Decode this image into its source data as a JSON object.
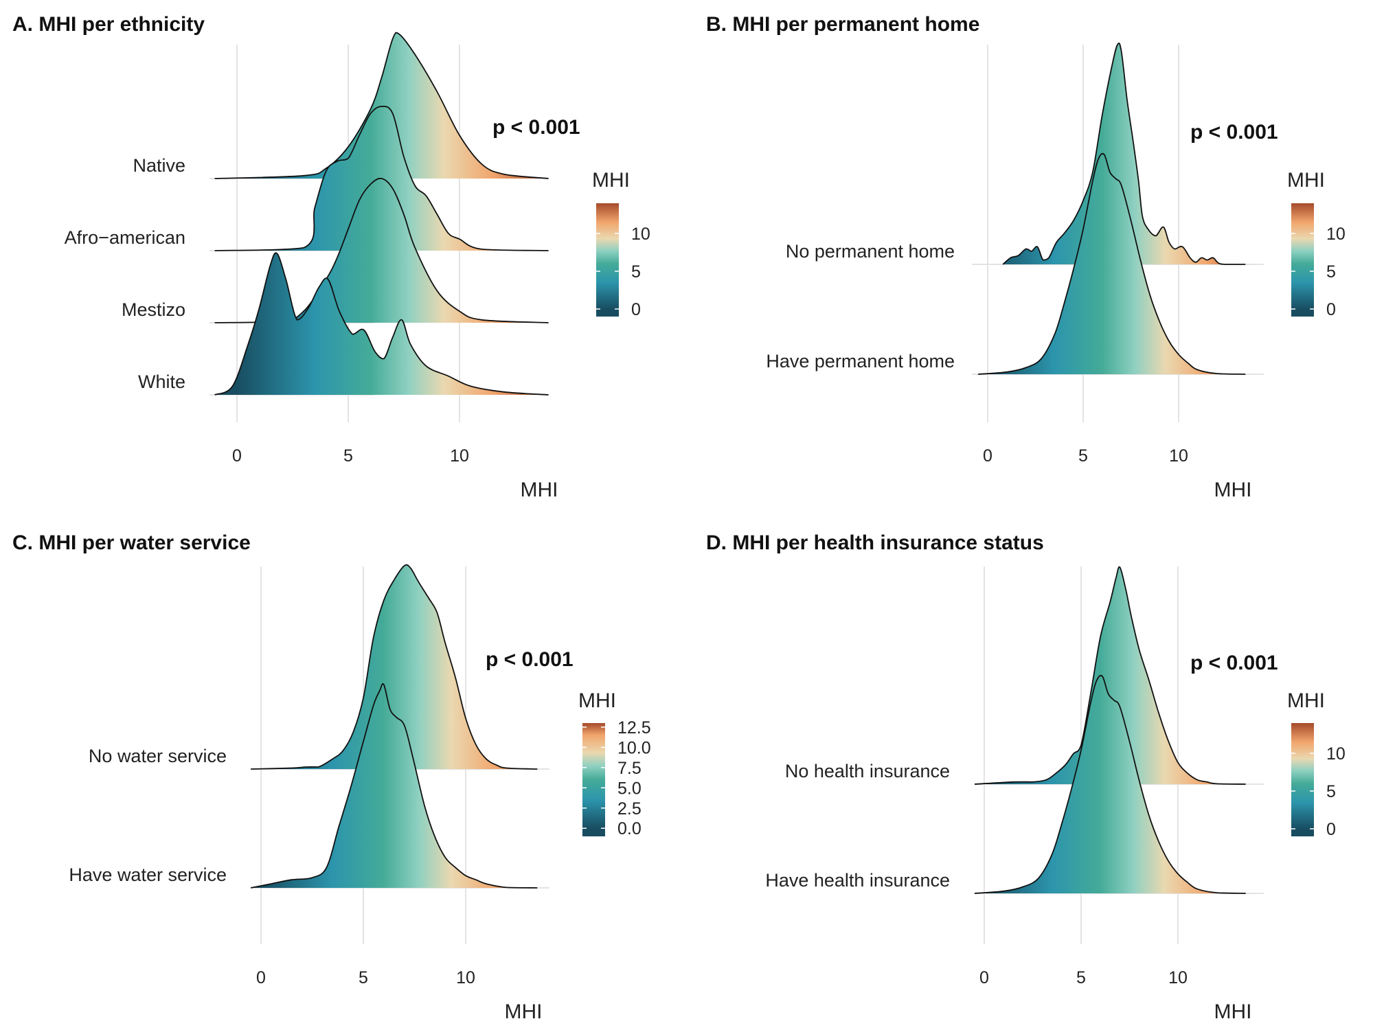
{
  "figure": {
    "palette": {
      "stops": [
        {
          "v": 0,
          "c": "#184d61"
        },
        {
          "v": 3.5,
          "c": "#2c95ac"
        },
        {
          "v": 6,
          "c": "#45ab98"
        },
        {
          "v": 7.7,
          "c": "#8fd0c1"
        },
        {
          "v": 9.3,
          "c": "#ead8b0"
        },
        {
          "v": 11.5,
          "c": "#f1a56c"
        },
        {
          "v": 14,
          "c": "#a54a2a"
        }
      ],
      "grid_color": "#e3e3e3",
      "outline_color": "#111111"
    }
  },
  "chart_data": [
    {
      "type": "ridgeline",
      "title": "A. MHI per ethnicity",
      "annotation": "p < 0.001",
      "xlabel": "MHI",
      "xlim": [
        -1,
        14
      ],
      "xticks": [
        "0",
        "5",
        "10"
      ],
      "legend": {
        "title": "MHI",
        "range": [
          -1,
          14
        ],
        "ticks": [
          "0",
          "5",
          "10"
        ]
      },
      "series": [
        {
          "name": "Native",
          "x": [
            -1,
            3,
            4,
            5,
            6,
            6.5,
            7,
            7.3,
            8,
            9,
            10,
            11,
            12,
            14
          ],
          "density": [
            0,
            0.02,
            0.07,
            0.22,
            0.48,
            0.7,
            0.97,
            1.0,
            0.86,
            0.6,
            0.3,
            0.1,
            0.03,
            0
          ]
        },
        {
          "name": "Afro−american",
          "x": [
            -1,
            3,
            3.5,
            4,
            4.5,
            5,
            5.5,
            6,
            6.5,
            7,
            7.5,
            8,
            8.5,
            9,
            9.5,
            10,
            11,
            14
          ],
          "density": [
            0,
            0.02,
            0.3,
            0.55,
            0.62,
            0.64,
            0.8,
            0.95,
            1.0,
            0.95,
            0.65,
            0.45,
            0.38,
            0.25,
            0.12,
            0.08,
            0.01,
            0
          ]
        },
        {
          "name": "Mestizo",
          "x": [
            -1,
            2,
            3,
            4,
            4.5,
            5,
            5.5,
            6,
            6.5,
            7,
            7.5,
            8,
            9,
            10,
            11,
            14
          ],
          "density": [
            0,
            0.01,
            0.08,
            0.3,
            0.45,
            0.65,
            0.85,
            0.96,
            1.0,
            0.93,
            0.75,
            0.52,
            0.22,
            0.08,
            0.02,
            0
          ]
        },
        {
          "name": "White",
          "x": [
            -1,
            -0.2,
            0.5,
            1,
            1.5,
            1.8,
            2.2,
            2.7,
            3.2,
            3.7,
            4.1,
            4.6,
            5.2,
            5.7,
            6.2,
            6.6,
            7,
            7.4,
            7.8,
            8.5,
            9.5,
            10.5,
            12,
            14
          ],
          "density": [
            0,
            0.06,
            0.35,
            0.6,
            0.9,
            0.98,
            0.8,
            0.52,
            0.6,
            0.75,
            0.8,
            0.58,
            0.42,
            0.45,
            0.3,
            0.25,
            0.4,
            0.52,
            0.35,
            0.2,
            0.13,
            0.06,
            0.02,
            0
          ]
        }
      ]
    },
    {
      "type": "ridgeline",
      "title": "B. MHI per permanent home",
      "annotation": "p < 0.001",
      "xlabel": "MHI",
      "xlim": [
        -0.5,
        13.5
      ],
      "xticks": [
        "0",
        "5",
        "10"
      ],
      "legend": {
        "title": "MHI",
        "range": [
          -1,
          14
        ],
        "ticks": [
          "0",
          "5",
          "10"
        ]
      },
      "series": [
        {
          "name": "No permanent home",
          "x": [
            0.8,
            1.2,
            1.6,
            2.0,
            2.3,
            2.6,
            2.9,
            3.2,
            3.6,
            4.0,
            4.5,
            5.0,
            5.5,
            6.0,
            6.5,
            6.8,
            7.0,
            7.3,
            7.6,
            7.9,
            8.1,
            8.4,
            8.8,
            9.2,
            9.5,
            9.8,
            10.2,
            10.6,
            10.9,
            11.2,
            11.5,
            11.8,
            12.1,
            12.5,
            13.5
          ],
          "density": [
            0,
            0.03,
            0.04,
            0.07,
            0.06,
            0.08,
            0.02,
            0.03,
            0.1,
            0.14,
            0.2,
            0.29,
            0.42,
            0.68,
            0.9,
            1.0,
            0.97,
            0.75,
            0.57,
            0.38,
            0.22,
            0.16,
            0.13,
            0.17,
            0.1,
            0.07,
            0.08,
            0.03,
            0.01,
            0.03,
            0.02,
            0.03,
            0.005,
            0,
            0
          ]
        },
        {
          "name": "Have permanent home",
          "x": [
            -0.5,
            1,
            2,
            2.8,
            3.5,
            4,
            4.5,
            5,
            5.5,
            5.8,
            6.1,
            6.4,
            6.7,
            7,
            7.5,
            8,
            8.5,
            9,
            9.5,
            10,
            10.5,
            11,
            12,
            13.5
          ],
          "density": [
            0,
            0.01,
            0.03,
            0.07,
            0.18,
            0.32,
            0.48,
            0.66,
            0.88,
            0.98,
            1.0,
            0.92,
            0.89,
            0.86,
            0.7,
            0.52,
            0.36,
            0.24,
            0.15,
            0.09,
            0.05,
            0.02,
            0.003,
            0
          ]
        }
      ]
    },
    {
      "type": "ridgeline",
      "title": "C. MHI per water service",
      "annotation": "p < 0.001",
      "xlabel": "MHI",
      "xlim": [
        -0.5,
        13.5
      ],
      "xticks": [
        "0",
        "5",
        "10"
      ],
      "legend": {
        "title": "MHI",
        "range": [
          -1,
          13
        ],
        "ticks": [
          "0.0",
          "2.5",
          "5.0",
          "7.5",
          "10.0",
          "12.5"
        ]
      },
      "series": [
        {
          "name": "No water service",
          "x": [
            -0.5,
            1.5,
            2.2,
            2.8,
            3.5,
            4,
            4.5,
            5,
            5.5,
            6,
            6.5,
            7,
            7.3,
            7.7,
            8.2,
            8.6,
            9,
            9.5,
            10,
            10.5,
            11,
            11.5,
            12,
            13.5
          ],
          "density": [
            0,
            0.005,
            0.01,
            0.01,
            0.05,
            0.09,
            0.18,
            0.35,
            0.65,
            0.83,
            0.93,
            1.0,
            0.99,
            0.92,
            0.84,
            0.77,
            0.62,
            0.45,
            0.25,
            0.12,
            0.05,
            0.02,
            0.005,
            0
          ]
        },
        {
          "name": "Have water service",
          "x": [
            -0.5,
            0.5,
            1.5,
            2.5,
            3.2,
            3.8,
            4.4,
            5.0,
            5.5,
            5.8,
            6.0,
            6.3,
            6.6,
            7.0,
            7.4,
            8.0,
            8.5,
            9.0,
            9.5,
            10.0,
            10.5,
            11.0,
            12.0,
            13.5
          ],
          "density": [
            0,
            0.02,
            0.04,
            0.05,
            0.1,
            0.3,
            0.5,
            0.72,
            0.9,
            0.97,
            1.0,
            0.88,
            0.84,
            0.8,
            0.65,
            0.4,
            0.25,
            0.15,
            0.1,
            0.06,
            0.04,
            0.02,
            0.002,
            0
          ]
        }
      ]
    },
    {
      "type": "ridgeline",
      "title": "D. MHI per health insurance status",
      "annotation": "p < 0.001",
      "xlabel": "MHI",
      "xlim": [
        -0.5,
        13.5
      ],
      "xticks": [
        "0",
        "5",
        "10"
      ],
      "legend": {
        "title": "MHI",
        "range": [
          -1,
          14
        ],
        "ticks": [
          "0",
          "5",
          "10"
        ]
      },
      "series": [
        {
          "name": "No health insurance",
          "x": [
            -0.5,
            1.5,
            2.5,
            3.2,
            3.7,
            4.2,
            4.6,
            5,
            5.5,
            6,
            6.5,
            6.8,
            7.0,
            7.3,
            7.6,
            8,
            8.5,
            9,
            9.5,
            10,
            10.5,
            11,
            11.5,
            12,
            13.5
          ],
          "density": [
            0,
            0.01,
            0.01,
            0.02,
            0.05,
            0.09,
            0.14,
            0.18,
            0.42,
            0.68,
            0.84,
            0.95,
            1.0,
            0.9,
            0.77,
            0.62,
            0.48,
            0.33,
            0.2,
            0.1,
            0.05,
            0.02,
            0.01,
            0.002,
            0
          ]
        },
        {
          "name": "Have health insurance",
          "x": [
            -0.5,
            1,
            2,
            2.8,
            3.5,
            4,
            4.5,
            5,
            5.5,
            5.8,
            6.1,
            6.4,
            6.7,
            7,
            7.5,
            8,
            8.5,
            9,
            9.5,
            10,
            10.5,
            11,
            12,
            13.5
          ],
          "density": [
            0,
            0.01,
            0.03,
            0.07,
            0.18,
            0.32,
            0.48,
            0.66,
            0.88,
            0.98,
            1.0,
            0.92,
            0.89,
            0.86,
            0.7,
            0.52,
            0.36,
            0.24,
            0.15,
            0.09,
            0.05,
            0.02,
            0.003,
            0
          ]
        }
      ]
    }
  ]
}
